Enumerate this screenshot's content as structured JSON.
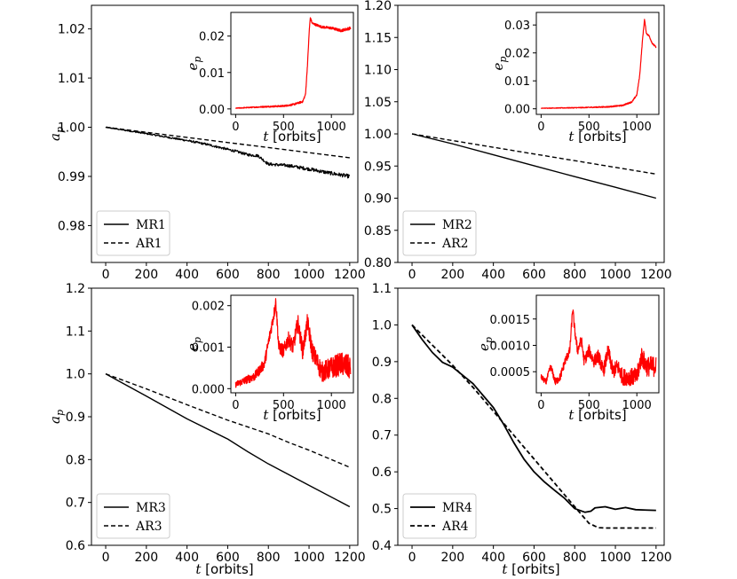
{
  "colors": {
    "main": "#000000",
    "inset": "#ff0000"
  },
  "chart_data": [
    {
      "type": "line",
      "panel": "top-left",
      "ylabel": "a_p",
      "xlabel": "",
      "xlim": [
        -70,
        1240
      ],
      "ylim": [
        0.9725,
        1.0248
      ],
      "xticks": [
        0,
        200,
        400,
        600,
        800,
        1000,
        1200
      ],
      "yticks": [
        0.98,
        0.99,
        1.0,
        1.01,
        1.02
      ],
      "ytick_labels": [
        "0.98",
        "0.99",
        "1.00",
        "1.01",
        "1.02"
      ],
      "legend_position": "lower-left",
      "series": [
        {
          "name": "MR1",
          "style": "solid",
          "noise": 0.0004,
          "x": [
            0,
            200,
            400,
            500,
            600,
            650,
            700,
            750,
            800,
            900,
            1000,
            1100,
            1200
          ],
          "y": [
            1.0,
            0.9987,
            0.9973,
            0.9965,
            0.9955,
            0.995,
            0.9944,
            0.9942,
            0.9925,
            0.9922,
            0.9915,
            0.9907,
            0.99
          ]
        },
        {
          "name": "AR1",
          "style": "dashed",
          "x": [
            0,
            1200
          ],
          "y": [
            1.0,
            0.9938
          ]
        }
      ],
      "inset": {
        "ylabel": "e_p",
        "xlabel": "t [orbits]",
        "xlim": [
          -50,
          1230
        ],
        "ylim": [
          -0.0015,
          0.0265
        ],
        "xticks": [
          0,
          500,
          1000
        ],
        "yticks": [
          0.0,
          0.01,
          0.02
        ],
        "ytick_labels": [
          "0.00",
          "0.01",
          "0.02"
        ],
        "series": [
          {
            "name": "e_p",
            "noise": 0.0004,
            "x": [
              0,
              300,
              500,
              600,
              700,
              730,
              750,
              770,
              780,
              800,
              850,
              900,
              1000,
              1100,
              1200
            ],
            "y": [
              0.0002,
              0.0006,
              0.0008,
              0.0012,
              0.002,
              0.004,
              0.012,
              0.022,
              0.025,
              0.0235,
              0.023,
              0.0225,
              0.0222,
              0.0215,
              0.0222
            ]
          }
        ]
      }
    },
    {
      "type": "line",
      "panel": "top-right",
      "ylabel": "",
      "xlabel": "",
      "xlim": [
        -70,
        1240
      ],
      "ylim": [
        0.8,
        1.2
      ],
      "xticks": [
        0,
        200,
        400,
        600,
        800,
        1000,
        1200
      ],
      "yticks": [
        0.8,
        0.85,
        0.9,
        0.95,
        1.0,
        1.05,
        1.1,
        1.15,
        1.2
      ],
      "ytick_labels": [
        "0.80",
        "0.85",
        "0.90",
        "0.95",
        "1.00",
        "1.05",
        "1.10",
        "1.15",
        "1.20"
      ],
      "legend_position": "lower-left",
      "series": [
        {
          "name": "MR2",
          "style": "solid",
          "x": [
            0,
            200,
            400,
            600,
            800,
            1000,
            1200
          ],
          "y": [
            1.0,
            0.9845,
            0.9675,
            0.9505,
            0.9335,
            0.917,
            0.9
          ]
        },
        {
          "name": "AR2",
          "style": "dashed",
          "x": [
            0,
            1200
          ],
          "y": [
            1.0,
            0.9375
          ]
        }
      ],
      "inset": {
        "ylabel": "e_p",
        "xlabel": "t [orbits]",
        "xlim": [
          -50,
          1230
        ],
        "ylim": [
          -0.002,
          0.0345
        ],
        "xticks": [
          0,
          500,
          1000
        ],
        "yticks": [
          0.0,
          0.01,
          0.02,
          0.03
        ],
        "ytick_labels": [
          "0.00",
          "0.01",
          "0.02",
          "0.03"
        ],
        "series": [
          {
            "name": "e_p",
            "noise": 0.0003,
            "x": [
              0,
              400,
              700,
              850,
              950,
              1000,
              1030,
              1060,
              1080,
              1100,
              1130,
              1160,
              1200
            ],
            "y": [
              0.0002,
              0.0004,
              0.0007,
              0.0012,
              0.0025,
              0.005,
              0.012,
              0.025,
              0.032,
              0.027,
              0.026,
              0.0235,
              0.022
            ]
          }
        ]
      }
    },
    {
      "type": "line",
      "panel": "bottom-left",
      "ylabel": "a_p",
      "xlabel": "t [orbits]",
      "xlim": [
        -70,
        1240
      ],
      "ylim": [
        0.6,
        1.2
      ],
      "xticks": [
        0,
        200,
        400,
        600,
        800,
        1000,
        1200
      ],
      "yticks": [
        0.6,
        0.7,
        0.8,
        0.9,
        1.0,
        1.1,
        1.2
      ],
      "ytick_labels": [
        "0.6",
        "0.7",
        "0.8",
        "0.9",
        "1.0",
        "1.1",
        "1.2"
      ],
      "legend_position": "lower-left",
      "series": [
        {
          "name": "MR3",
          "style": "solid",
          "x": [
            0,
            200,
            400,
            600,
            700,
            800,
            1000,
            1200
          ],
          "y": [
            1.0,
            0.948,
            0.895,
            0.848,
            0.818,
            0.79,
            0.74,
            0.69
          ]
        },
        {
          "name": "AR3",
          "style": "dashed",
          "x": [
            0,
            200,
            400,
            600,
            800,
            900,
            1000,
            1200
          ],
          "y": [
            1.0,
            0.965,
            0.928,
            0.892,
            0.86,
            0.84,
            0.822,
            0.782
          ]
        }
      ],
      "inset": {
        "ylabel": "e_p",
        "xlabel": "t [orbits]",
        "xlim": [
          -50,
          1230
        ],
        "ylim": [
          -0.0001,
          0.00225
        ],
        "xticks": [
          0,
          500,
          1000
        ],
        "yticks": [
          0.0,
          0.001,
          0.002
        ],
        "ytick_labels": [
          "0.000",
          "0.001",
          "0.002"
        ],
        "series": [
          {
            "name": "e_p",
            "noise": 0.0003,
            "x": [
              0,
              100,
              200,
              300,
              350,
              400,
              420,
              450,
              500,
              550,
              600,
              650,
              700,
              750,
              800,
              900,
              1000,
              1100,
              1200
            ],
            "y": [
              0.0001,
              0.0002,
              0.0003,
              0.0006,
              0.0012,
              0.0018,
              0.0021,
              0.001,
              0.0009,
              0.0012,
              0.001,
              0.0016,
              0.0009,
              0.0016,
              0.0009,
              0.0004,
              0.0005,
              0.0006,
              0.0005
            ]
          }
        ]
      }
    },
    {
      "type": "line",
      "panel": "bottom-right",
      "ylabel": "",
      "xlabel": "t [orbits]",
      "xlim": [
        -70,
        1240
      ],
      "ylim": [
        0.4,
        1.1
      ],
      "xticks": [
        0,
        200,
        400,
        600,
        800,
        1000,
        1200
      ],
      "yticks": [
        0.4,
        0.5,
        0.6,
        0.7,
        0.8,
        0.9,
        1.0,
        1.1
      ],
      "ytick_labels": [
        "0.4",
        "0.5",
        "0.6",
        "0.7",
        "0.8",
        "0.9",
        "1.0",
        "1.1"
      ],
      "legend_position": "lower-left",
      "series": [
        {
          "name": "MR4",
          "style": "solid",
          "x": [
            0,
            50,
            100,
            150,
            200,
            300,
            400,
            450,
            500,
            550,
            600,
            650,
            700,
            750,
            800,
            850,
            880,
            900,
            950,
            1000,
            1050,
            1100,
            1150,
            1200
          ],
          "y": [
            1.0,
            0.96,
            0.925,
            0.898,
            0.885,
            0.84,
            0.775,
            0.73,
            0.68,
            0.635,
            0.6,
            0.573,
            0.55,
            0.528,
            0.5,
            0.49,
            0.493,
            0.502,
            0.505,
            0.498,
            0.503,
            0.497,
            0.496,
            0.495
          ]
        },
        {
          "name": "AR4",
          "style": "dashed",
          "x": [
            0,
            100,
            200,
            300,
            400,
            500,
            600,
            700,
            800,
            870,
            900,
            920,
            950,
            1000,
            1100,
            1200
          ],
          "y": [
            1.0,
            0.945,
            0.89,
            0.83,
            0.765,
            0.7,
            0.635,
            0.57,
            0.505,
            0.46,
            0.452,
            0.448,
            0.447,
            0.447,
            0.447,
            0.447
          ]
        }
      ],
      "inset": {
        "ylabel": "e_p",
        "xlabel": "t [orbits]",
        "xlim": [
          -50,
          1230
        ],
        "ylim": [
          0.0001,
          0.00195
        ],
        "xticks": [
          0,
          500,
          1000
        ],
        "yticks": [
          0.0005,
          0.001,
          0.0015
        ],
        "ytick_labels": [
          "0.0005",
          "0.0010",
          "0.0015"
        ],
        "series": [
          {
            "name": "e_p",
            "noise": 0.0002,
            "x": [
              0,
              50,
              100,
              150,
              200,
              250,
              300,
              330,
              350,
              380,
              420,
              450,
              500,
              550,
              600,
              650,
              700,
              750,
              800,
              850,
              900,
              950,
              1000,
              1050,
              1100,
              1150,
              1200
            ],
            "y": [
              0.0004,
              0.0003,
              0.0006,
              0.0003,
              0.0004,
              0.0007,
              0.0009,
              0.0017,
              0.0013,
              0.0009,
              0.0011,
              0.0007,
              0.0009,
              0.0007,
              0.0008,
              0.0005,
              0.0009,
              0.0005,
              0.0006,
              0.0004,
              0.0004,
              0.0004,
              0.0004,
              0.0008,
              0.0006,
              0.0006,
              0.0006
            ]
          }
        ]
      }
    }
  ]
}
